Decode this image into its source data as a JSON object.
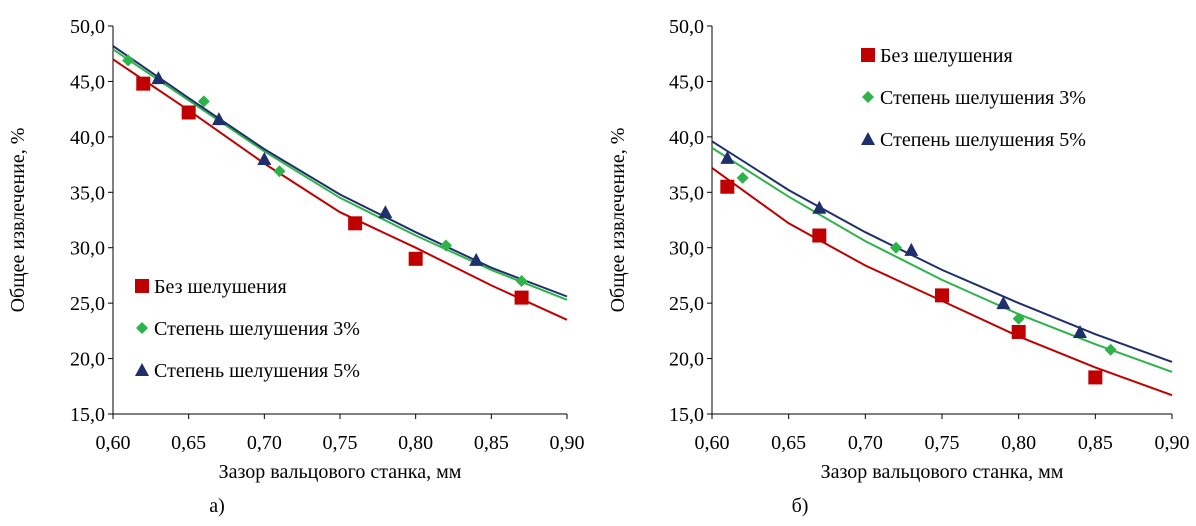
{
  "chart_data": [
    {
      "type": "scatter",
      "panel_label": "а)",
      "xlabel": "Зазор вальцового станка, мм",
      "ylabel": "Общее извлечение, %",
      "xlim": [
        0.6,
        0.9
      ],
      "ylim": [
        15.0,
        50.0
      ],
      "x_ticks": [
        "0,60",
        "0,65",
        "0,70",
        "0,75",
        "0,80",
        "0,85",
        "0,90"
      ],
      "y_ticks": [
        "15,0",
        "20,0",
        "25,0",
        "30,0",
        "35,0",
        "40,0",
        "45,0",
        "50,0"
      ],
      "grid": false,
      "legend_position": "bottom-left",
      "series": [
        {
          "name": "Без шелушения",
          "marker": "square",
          "color": "#C00000",
          "x": [
            0.62,
            0.65,
            0.76,
            0.8,
            0.87
          ],
          "y": [
            44.8,
            42.2,
            32.2,
            29.0,
            25.5
          ],
          "trend": [
            [
              0.6,
              47.0
            ],
            [
              0.65,
              42.4
            ],
            [
              0.7,
              37.6
            ],
            [
              0.75,
              33.2
            ],
            [
              0.8,
              30.0
            ],
            [
              0.85,
              26.6
            ],
            [
              0.9,
              23.5
            ]
          ]
        },
        {
          "name": "Степень шелушения 3%",
          "marker": "diamond",
          "color": "#2DB34A",
          "x": [
            0.61,
            0.66,
            0.71,
            0.82,
            0.87
          ],
          "y": [
            46.9,
            43.2,
            36.9,
            30.2,
            27.0
          ],
          "trend": [
            [
              0.6,
              47.9
            ],
            [
              0.65,
              43.3
            ],
            [
              0.7,
              38.7
            ],
            [
              0.75,
              34.5
            ],
            [
              0.8,
              31.1
            ],
            [
              0.85,
              28.0
            ],
            [
              0.9,
              25.3
            ]
          ]
        },
        {
          "name": "Степень шелушения 5%",
          "marker": "triangle",
          "color": "#1F2F6B",
          "x": [
            0.63,
            0.67,
            0.7,
            0.78,
            0.84
          ],
          "y": [
            45.3,
            41.6,
            38.0,
            33.2,
            28.9
          ],
          "trend": [
            [
              0.6,
              48.2
            ],
            [
              0.65,
              43.5
            ],
            [
              0.7,
              38.9
            ],
            [
              0.75,
              34.8
            ],
            [
              0.8,
              31.4
            ],
            [
              0.85,
              28.2
            ],
            [
              0.9,
              25.6
            ]
          ]
        }
      ]
    },
    {
      "type": "scatter",
      "panel_label": "б)",
      "xlabel": "Зазор вальцового станка, мм",
      "ylabel": "Общее извлечение, %",
      "xlim": [
        0.6,
        0.9
      ],
      "ylim": [
        15.0,
        50.0
      ],
      "x_ticks": [
        "0,60",
        "0,65",
        "0,70",
        "0,75",
        "0,80",
        "0,85",
        "0,90"
      ],
      "y_ticks": [
        "15,0",
        "20,0",
        "25,0",
        "30,0",
        "35,0",
        "40,0",
        "45,0",
        "50,0"
      ],
      "grid": false,
      "legend_position": "top-right",
      "series": [
        {
          "name": "Без шелушения",
          "marker": "square",
          "color": "#C00000",
          "x": [
            0.61,
            0.67,
            0.75,
            0.8,
            0.85
          ],
          "y": [
            35.5,
            31.1,
            25.7,
            22.4,
            18.3
          ],
          "trend": [
            [
              0.6,
              37.2
            ],
            [
              0.65,
              32.2
            ],
            [
              0.7,
              28.4
            ],
            [
              0.75,
              25.2
            ],
            [
              0.8,
              22.0
            ],
            [
              0.85,
              19.2
            ],
            [
              0.9,
              16.7
            ]
          ]
        },
        {
          "name": "Степень шелушения 3%",
          "marker": "diamond",
          "color": "#2DB34A",
          "x": [
            0.62,
            0.72,
            0.8,
            0.86
          ],
          "y": [
            36.3,
            30.0,
            23.6,
            20.8
          ],
          "trend": [
            [
              0.6,
              39.0
            ],
            [
              0.65,
              34.6
            ],
            [
              0.7,
              30.6
            ],
            [
              0.75,
              27.1
            ],
            [
              0.8,
              24.0
            ],
            [
              0.85,
              21.3
            ],
            [
              0.9,
              18.8
            ]
          ]
        },
        {
          "name": "Степень шелушения 5%",
          "marker": "triangle",
          "color": "#1F2F6B",
          "x": [
            0.61,
            0.67,
            0.73,
            0.79,
            0.84
          ],
          "y": [
            38.1,
            33.6,
            29.8,
            25.0,
            22.4
          ],
          "trend": [
            [
              0.6,
              39.6
            ],
            [
              0.65,
              35.2
            ],
            [
              0.7,
              31.4
            ],
            [
              0.75,
              28.0
            ],
            [
              0.8,
              25.0
            ],
            [
              0.85,
              22.2
            ],
            [
              0.9,
              19.7
            ]
          ]
        }
      ]
    }
  ]
}
